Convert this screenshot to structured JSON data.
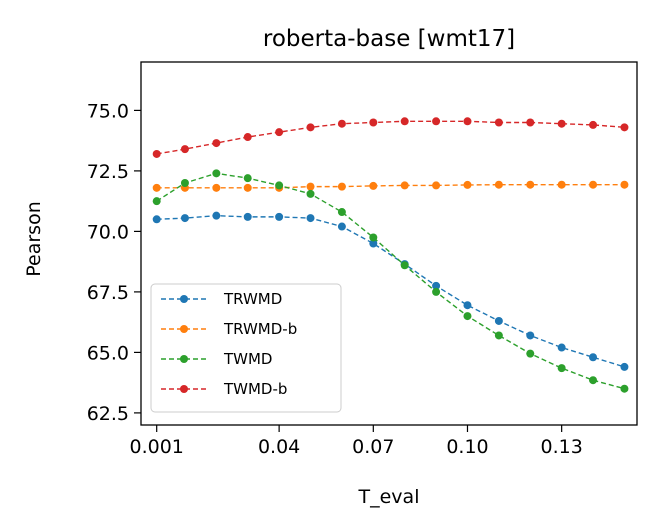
{
  "chart_data": {
    "type": "line",
    "title": "roberta-base [wmt17]",
    "xlabel": "T_eval",
    "ylabel": "Pearson",
    "xlim": [
      -0.004,
      0.154
    ],
    "ylim": [
      62.0,
      77.0
    ],
    "xticks": [
      0.001,
      0.04,
      0.07,
      0.1,
      0.13
    ],
    "xtick_labels": [
      "0.001",
      "0.04",
      "0.07",
      "0.10",
      "0.13"
    ],
    "yticks": [
      62.5,
      65.0,
      67.5,
      70.0,
      72.5,
      75.0
    ],
    "ytick_labels": [
      "62.5",
      "65.0",
      "67.5",
      "70.0",
      "72.5",
      "75.0"
    ],
    "grid": false,
    "legend_position": "lower-left",
    "x": [
      0.001,
      0.01,
      0.02,
      0.03,
      0.04,
      0.05,
      0.06,
      0.07,
      0.08,
      0.09,
      0.1,
      0.11,
      0.12,
      0.13,
      0.14,
      0.15
    ],
    "series": [
      {
        "name": "TRWMD",
        "color": "#1f77b4",
        "values": [
          70.5,
          70.55,
          70.65,
          70.6,
          70.6,
          70.55,
          70.2,
          69.5,
          68.65,
          67.75,
          66.95,
          66.3,
          65.7,
          65.2,
          64.8,
          64.4
        ]
      },
      {
        "name": "TRWMD-b",
        "color": "#ff7f0e",
        "values": [
          71.8,
          71.8,
          71.8,
          71.8,
          71.8,
          71.85,
          71.85,
          71.88,
          71.9,
          71.9,
          71.92,
          71.93,
          71.93,
          71.93,
          71.93,
          71.93
        ]
      },
      {
        "name": "TWMD",
        "color": "#2ca02c",
        "values": [
          71.25,
          72.0,
          72.4,
          72.2,
          71.9,
          71.55,
          70.8,
          69.75,
          68.6,
          67.5,
          66.5,
          65.7,
          64.95,
          64.35,
          63.85,
          63.5
        ]
      },
      {
        "name": "TWMD-b",
        "color": "#d62728",
        "values": [
          73.2,
          73.4,
          73.65,
          73.9,
          74.1,
          74.3,
          74.45,
          74.5,
          74.55,
          74.55,
          74.55,
          74.5,
          74.5,
          74.45,
          74.4,
          74.3
        ]
      }
    ]
  }
}
